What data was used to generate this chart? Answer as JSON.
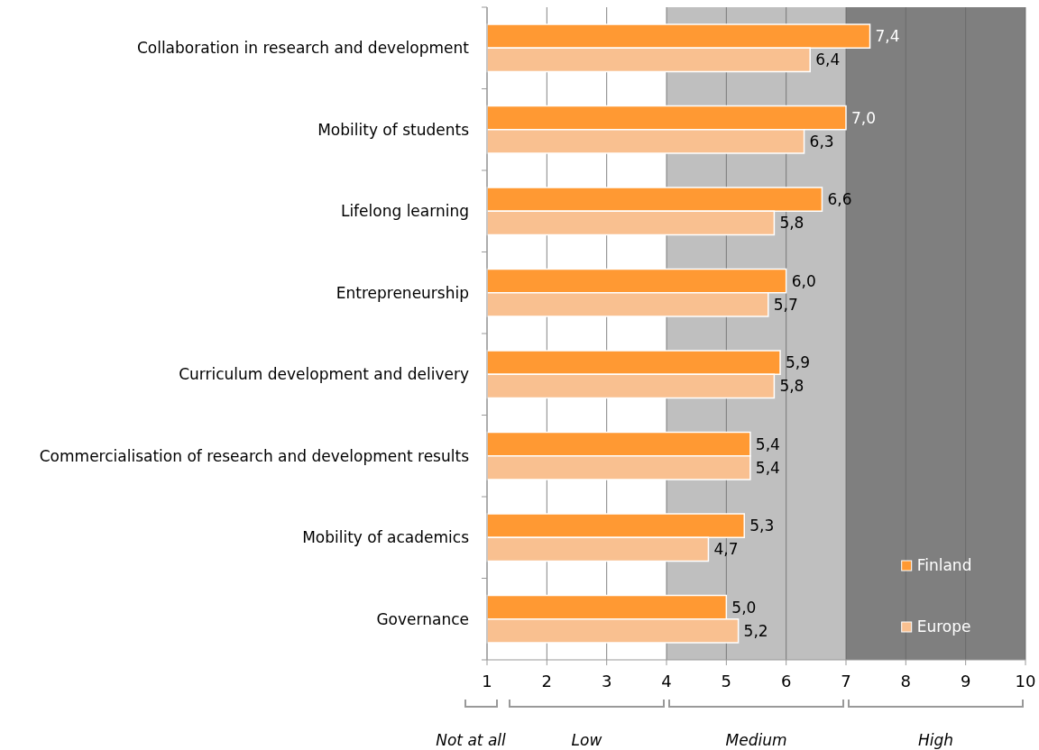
{
  "chart_data": {
    "type": "bar",
    "orientation": "horizontal",
    "categories": [
      "Collaboration in research and development",
      "Mobility of students",
      "Lifelong learning",
      "Entrepreneurship",
      "Curriculum development and delivery",
      "Commercialisation of research and development results",
      "Mobility of academics",
      "Governance"
    ],
    "series": [
      {
        "name": "Finland",
        "color": "#ff9933",
        "values": [
          7.4,
          7.0,
          6.6,
          6.0,
          5.9,
          5.4,
          5.3,
          5.0
        ],
        "value_labels": [
          "7,4",
          "7,0",
          "6,6",
          "6,0",
          "5,9",
          "5,4",
          "5,3",
          "5,0"
        ]
      },
      {
        "name": "Europe",
        "color": "#f9c090",
        "values": [
          6.4,
          6.3,
          5.8,
          5.7,
          5.8,
          5.4,
          4.7,
          5.2
        ],
        "value_labels": [
          "6,4",
          "6,3",
          "5,8",
          "5,7",
          "5,8",
          "5,4",
          "4,7",
          "5,2"
        ]
      }
    ],
    "xlim": [
      1,
      10
    ],
    "xticks": [
      1,
      2,
      3,
      4,
      5,
      6,
      7,
      8,
      9,
      10
    ],
    "grid": "x",
    "legend": "bottom right",
    "bands": [
      {
        "axis": "x",
        "from": 4,
        "to": 7,
        "color": "#bfbfbf"
      },
      {
        "axis": "x",
        "from": 7,
        "to": 10,
        "color": "#7f7f7f"
      }
    ],
    "annotations": [
      "Not at all",
      "Low",
      "Medium",
      "High"
    ]
  }
}
